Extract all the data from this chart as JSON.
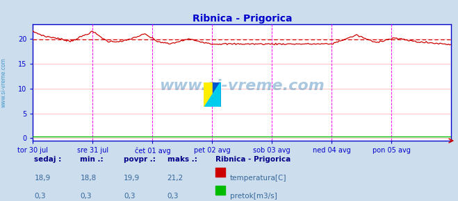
{
  "title": "Ribnica - Prigorica",
  "title_color": "#0000cc",
  "bg_color": "#ccdded",
  "plot_bg_color": "#ffffff",
  "grid_color": "#ffaaaa",
  "axis_color": "#0000cc",
  "watermark": "www.si-vreme.com",
  "xticklabels": [
    "tor 30 jul",
    "sre 31 jul",
    "čet 01 avg",
    "pet 02 avg",
    "sob 03 avg",
    "ned 04 avg",
    "pon 05 avg"
  ],
  "yticks": [
    0,
    5,
    10,
    15,
    20
  ],
  "ylim": [
    -0.5,
    23
  ],
  "xlim": [
    0,
    336
  ],
  "temp_color": "#cc0000",
  "pretok_color": "#00bb00",
  "avg_temp": 19.9,
  "vline_color": "#ff00ff",
  "num_points": 337,
  "station_name": "Ribnica - Prigorica",
  "legend_temp": "temperatura[C]",
  "legend_pretok": "pretok[m3/s]",
  "sidebar_text": "www.si-vreme.com",
  "sidebar_color": "#4499cc",
  "table_color_bold": "#000088",
  "table_color_val": "#336699"
}
